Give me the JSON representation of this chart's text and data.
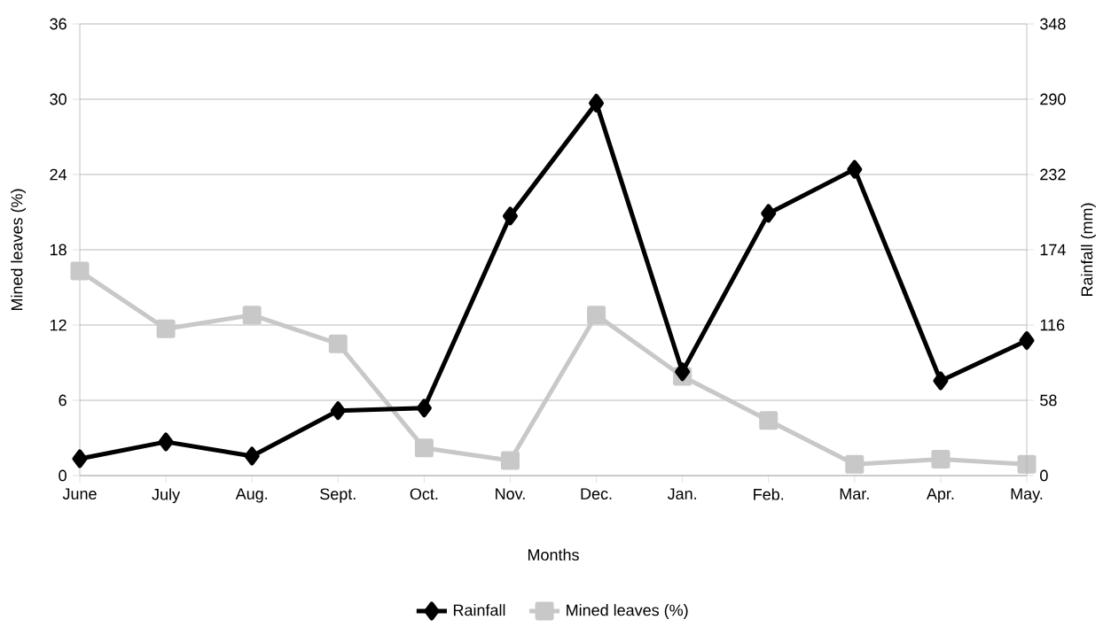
{
  "chart_data": {
    "type": "line",
    "xlabel": "Months",
    "ylabel": "Mined leaves  (%)",
    "y2label": "Rainfall (mm)",
    "categories": [
      "June",
      "July",
      "Aug.",
      "Sept.",
      "Oct.",
      "Nov.",
      "Dec.",
      "Jan.",
      "Feb.",
      "Mar.",
      "Apr.",
      "May."
    ],
    "series": [
      {
        "name": "Rainfall",
        "color": "#000000",
        "axis": "y2",
        "marker": "diamond",
        "values": [
          13,
          26,
          15,
          50,
          52,
          200,
          287,
          80,
          202,
          236,
          73,
          104
        ]
      },
      {
        "name": "Mined leaves  (%)",
        "color": "#c8c8c8",
        "marker": "square",
        "values": [
          16.3,
          11.7,
          12.8,
          10.5,
          2.2,
          1.2,
          12.8,
          7.9,
          4.4,
          0.9,
          1.3,
          0.9
        ]
      }
    ],
    "ylim": [
      0,
      36
    ],
    "yticks": [
      0,
      6,
      12,
      18,
      24,
      30,
      36
    ],
    "y2lim": [
      0,
      348
    ],
    "y2ticks": [
      0,
      58,
      116,
      174,
      232,
      290,
      348
    ],
    "grid": "y",
    "legend": "bottom",
    "line_style": "solid"
  }
}
